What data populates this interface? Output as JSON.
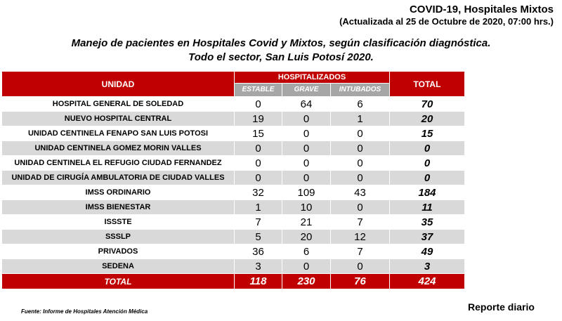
{
  "header": {
    "title": "COVID-19, Hospitales Mixtos",
    "updated": "(Actualizada al 25 de Octubre de 2020, 07:00 hrs.)"
  },
  "subtitle": {
    "line1": "Manejo de pacientes en Hospitales Covid y Mixtos, según clasificación diagnóstica.",
    "line2": "Todo el sector, San Luis Potosí 2020."
  },
  "table": {
    "col_unidad": "UNIDAD",
    "col_hosp": "HOSPITALIZADOS",
    "col_estable": "ESTABLE",
    "col_grave": "GRAVE",
    "col_intubados": "INTUBADOS",
    "col_total": "TOTAL",
    "rows": [
      {
        "name": "HOSPITAL GENERAL DE SOLEDAD",
        "estable": "0",
        "grave": "64",
        "intubados": "6",
        "total": "70"
      },
      {
        "name": "NUEVO HOSPITAL CENTRAL",
        "estable": "19",
        "grave": "0",
        "intubados": "1",
        "total": "20"
      },
      {
        "name": "UNIDAD CENTINELA FENAPO SAN LUIS POTOSI",
        "estable": "15",
        "grave": "0",
        "intubados": "0",
        "total": "15"
      },
      {
        "name": "UNIDAD CENTINELA GOMEZ MORIN VALLES",
        "estable": "0",
        "grave": "0",
        "intubados": "0",
        "total": "0"
      },
      {
        "name": "UNIDAD CENTINELA EL REFUGIO CIUDAD FERNANDEZ",
        "estable": "0",
        "grave": "0",
        "intubados": "0",
        "total": "0"
      },
      {
        "name": "UNIDAD DE CIRUGÍA AMBULATORIA DE CIUDAD VALLES",
        "estable": "0",
        "grave": "0",
        "intubados": "0",
        "total": "0"
      },
      {
        "name": "IMSS ORDINARIO",
        "estable": "32",
        "grave": "109",
        "intubados": "43",
        "total": "184"
      },
      {
        "name": "IMSS BIENESTAR",
        "estable": "1",
        "grave": "10",
        "intubados": "0",
        "total": "11"
      },
      {
        "name": "ISSSTE",
        "estable": "7",
        "grave": "21",
        "intubados": "7",
        "total": "35"
      },
      {
        "name": "SSSLP",
        "estable": "5",
        "grave": "20",
        "intubados": "12",
        "total": "37"
      },
      {
        "name": "PRIVADOS",
        "estable": "36",
        "grave": "6",
        "intubados": "7",
        "total": "49"
      },
      {
        "name": "SEDENA",
        "estable": "3",
        "grave": "0",
        "intubados": "0",
        "total": "3"
      }
    ],
    "totals": {
      "label": "TOTAL",
      "estable": "118",
      "grave": "230",
      "intubados": "76",
      "total": "424"
    }
  },
  "footer": {
    "source": "Fuente: Informe de Hospitales Atención Médica",
    "report": "Reporte diario"
  },
  "colors": {
    "accent": "#c00000",
    "subheader": "#a6a6a6",
    "stripe": "#d9d9d9"
  }
}
